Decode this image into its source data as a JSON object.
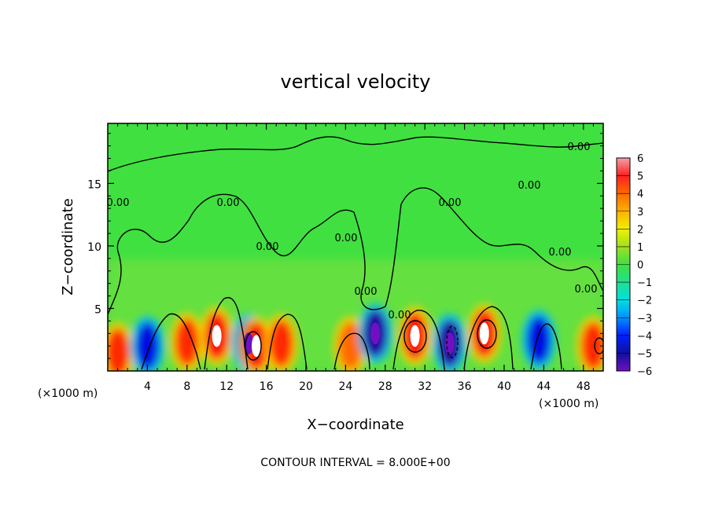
{
  "chart_data": {
    "type": "heatmap",
    "title": "vertical velocity",
    "xlabel": "X−coordinate",
    "ylabel": "Z−coordinate",
    "x_unit": "(×1000 m)",
    "y_unit": "(×1000 m)",
    "xlim": [
      0,
      50
    ],
    "ylim": [
      0,
      19.8
    ],
    "x_ticks": [
      4,
      8,
      12,
      16,
      20,
      24,
      28,
      32,
      36,
      40,
      44,
      48
    ],
    "y_ticks": [
      5,
      10,
      15
    ],
    "colorbar": {
      "min": -6,
      "max": 6,
      "tick_labels": [
        "6",
        "5",
        "4",
        "3",
        "2",
        "1",
        "0",
        "−1",
        "−2",
        "−3",
        "−4",
        "−5",
        "−6"
      ]
    },
    "contour_labels": [
      "0.00",
      "0.00",
      "0.00",
      "0.00",
      "0.00",
      "0.00",
      "0.00",
      "0.00",
      "0.00",
      "0.00",
      "0.00"
    ],
    "footer": "CONTOUR INTERVAL = 8.000E+00",
    "field_features": [
      {
        "x": 1.0,
        "z": 1.5,
        "value": 4.5
      },
      {
        "x": 4.0,
        "z": 2.0,
        "value": -5.0
      },
      {
        "x": 8.0,
        "z": 2.3,
        "value": 5.0
      },
      {
        "x": 11.0,
        "z": 2.8,
        "value": 5.5
      },
      {
        "x": 14.2,
        "z": 2.2,
        "value": -5.5
      },
      {
        "x": 15.0,
        "z": 2.0,
        "value": 6.0
      },
      {
        "x": 17.5,
        "z": 2.2,
        "value": 5.0
      },
      {
        "x": 24.5,
        "z": 2.0,
        "value": 4.0
      },
      {
        "x": 27.0,
        "z": 3.0,
        "value": -6.0
      },
      {
        "x": 31.0,
        "z": 2.8,
        "value": 6.0
      },
      {
        "x": 34.5,
        "z": 2.2,
        "value": -5.5
      },
      {
        "x": 38.0,
        "z": 3.0,
        "value": 6.0
      },
      {
        "x": 43.5,
        "z": 2.5,
        "value": -5.0
      },
      {
        "x": 49.0,
        "z": 2.0,
        "value": 5.0
      }
    ]
  }
}
